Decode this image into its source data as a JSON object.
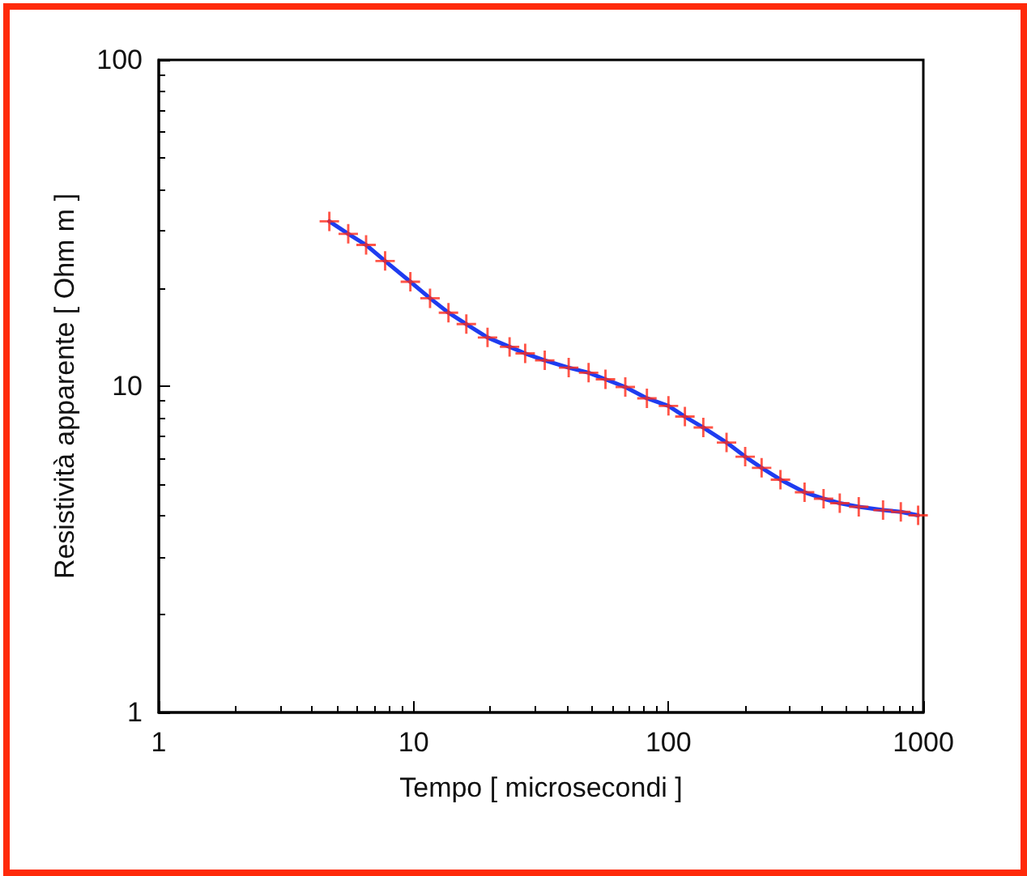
{
  "chart_data": {
    "type": "line",
    "xlabel": "Tempo [ microsecondi ]",
    "ylabel": "Resistività apparente [ Ohm m ]",
    "log": "xy",
    "grid": false,
    "xlim": [
      1,
      1000
    ],
    "xticks": [
      1,
      10,
      100,
      1000
    ],
    "ylim": [
      1,
      100
    ],
    "yticks": [
      1,
      10,
      100
    ],
    "series": [
      {
        "color": "#1f3cf0",
        "marker": "none",
        "line_style": "solid",
        "x": [
          4.67,
          5.54,
          6.51,
          7.73,
          9.71,
          11.6,
          13.7,
          16.1,
          19.5,
          23.8,
          27.4,
          32.7,
          40.6,
          48.6,
          56.6,
          67.7,
          82.3,
          100,
          116,
          137,
          169,
          200,
          232,
          275,
          342,
          406,
          470,
          558,
          695,
          816,
          954
        ],
        "values": [
          32.0,
          29.3,
          27.1,
          24.2,
          20.9,
          18.6,
          16.8,
          15.5,
          14.1,
          13.2,
          12.6,
          12.0,
          11.4,
          11.0,
          10.5,
          9.94,
          9.18,
          8.7,
          8.07,
          7.47,
          6.72,
          6.08,
          5.62,
          5.17,
          4.73,
          4.52,
          4.38,
          4.27,
          4.17,
          4.12,
          4.02
        ]
      },
      {
        "type": "scatter",
        "color": "#ff2a1a",
        "marker": "cross",
        "x": [
          4.67,
          5.54,
          6.51,
          7.73,
          9.71,
          11.6,
          13.7,
          16.1,
          19.5,
          23.8,
          27.4,
          32.7,
          40.6,
          48.6,
          56.6,
          67.7,
          82.3,
          100,
          116,
          137,
          169,
          200,
          232,
          275,
          342,
          406,
          470,
          558,
          695,
          816,
          954
        ],
        "values": [
          32.0,
          29.3,
          27.1,
          24.2,
          20.9,
          18.6,
          16.8,
          15.5,
          14.1,
          13.2,
          12.6,
          12.0,
          11.4,
          11.0,
          10.5,
          9.94,
          9.18,
          8.7,
          8.07,
          7.47,
          6.72,
          6.08,
          5.62,
          5.17,
          4.73,
          4.52,
          4.38,
          4.27,
          4.17,
          4.12,
          4.02
        ]
      }
    ]
  }
}
